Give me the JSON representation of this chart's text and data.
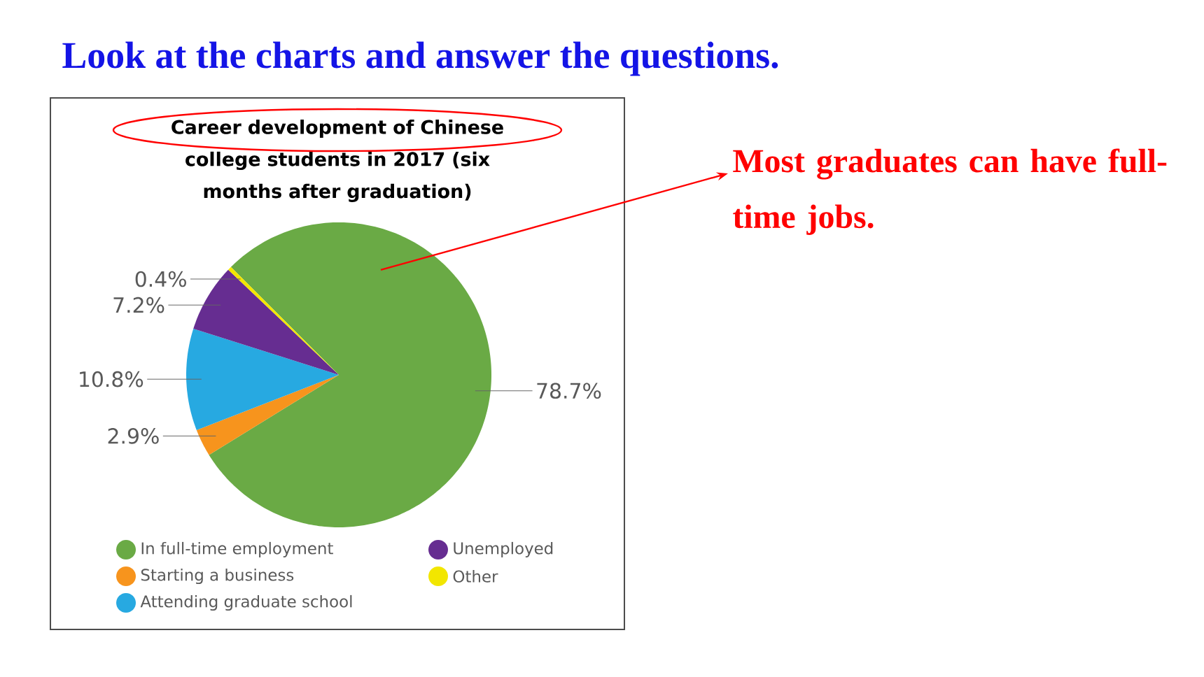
{
  "chart_data": {
    "type": "pie",
    "title": "Career development of Chinese college students in 2017 (six months after graduation)",
    "categories": [
      "In full-time employment",
      "Starting a business",
      "Attending graduate school",
      "Unemployed",
      "Other"
    ],
    "values": [
      78.7,
      2.9,
      10.8,
      7.2,
      0.4
    ],
    "value_labels": [
      "78.7%",
      "2.9%",
      "10.8%",
      "7.2%",
      "0.4%"
    ],
    "colors": [
      "#6aaa45",
      "#f7941d",
      "#27a9e1",
      "#662d91",
      "#f2e600"
    ],
    "legend": "bottom",
    "annotations": [
      "Look at the charts and answer the questions.",
      "Most graduates can have full-time jobs."
    ]
  }
}
